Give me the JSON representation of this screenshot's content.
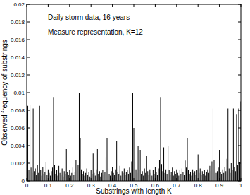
{
  "chart_data": {
    "type": "bar",
    "annotations": [
      "Daily storm data, 16 years",
      "Measure representation, K=12"
    ],
    "x_label": "Substrings with length K",
    "y_label": "Observed frequency of substrings",
    "color": "#000000",
    "xlim": [
      0,
      1
    ],
    "ylim": [
      0,
      0.02
    ],
    "xticks": [
      0,
      0.1,
      0.2,
      0.3,
      0.4,
      0.5,
      0.6,
      0.7,
      0.8,
      0.9,
      1
    ],
    "yticks": [
      0,
      0.002,
      0.004,
      0.006,
      0.008,
      0.01,
      0.012,
      0.014,
      0.016,
      0.018,
      0.02
    ],
    "x": [
      0,
      0.005,
      0.01,
      0.015,
      0.02,
      0.025,
      0.03,
      0.035,
      0.04,
      0.045,
      0.05,
      0.055,
      0.06,
      0.065,
      0.07,
      0.075,
      0.08,
      0.085,
      0.09,
      0.095,
      0.1,
      0.105,
      0.11,
      0.115,
      0.12,
      0.125,
      0.13,
      0.135,
      0.14,
      0.145,
      0.15,
      0.155,
      0.16,
      0.165,
      0.17,
      0.175,
      0.18,
      0.185,
      0.19,
      0.195,
      0.2,
      0.205,
      0.21,
      0.215,
      0.22,
      0.225,
      0.23,
      0.235,
      0.24,
      0.245,
      0.25,
      0.255,
      0.26,
      0.265,
      0.27,
      0.275,
      0.28,
      0.285,
      0.29,
      0.295,
      0.3,
      0.305,
      0.31,
      0.315,
      0.32,
      0.325,
      0.33,
      0.335,
      0.34,
      0.345,
      0.35,
      0.355,
      0.36,
      0.365,
      0.37,
      0.375,
      0.38,
      0.385,
      0.39,
      0.395,
      0.4,
      0.405,
      0.41,
      0.415,
      0.42,
      0.425,
      0.43,
      0.435,
      0.44,
      0.445,
      0.45,
      0.455,
      0.46,
      0.465,
      0.47,
      0.475,
      0.48,
      0.485,
      0.49,
      0.495,
      0.5,
      0.505,
      0.51,
      0.515,
      0.52,
      0.525,
      0.53,
      0.535,
      0.54,
      0.545,
      0.55,
      0.555,
      0.56,
      0.565,
      0.57,
      0.575,
      0.58,
      0.585,
      0.59,
      0.595,
      0.6,
      0.605,
      0.61,
      0.615,
      0.62,
      0.625,
      0.63,
      0.635,
      0.64,
      0.645,
      0.65,
      0.655,
      0.66,
      0.665,
      0.67,
      0.675,
      0.68,
      0.685,
      0.69,
      0.695,
      0.7,
      0.705,
      0.71,
      0.715,
      0.72,
      0.725,
      0.73,
      0.735,
      0.74,
      0.745,
      0.75,
      0.755,
      0.76,
      0.765,
      0.77,
      0.775,
      0.78,
      0.785,
      0.79,
      0.795,
      0.8,
      0.805,
      0.81,
      0.815,
      0.82,
      0.825,
      0.83,
      0.835,
      0.84,
      0.845,
      0.85,
      0.855,
      0.86,
      0.865,
      0.87,
      0.875,
      0.88,
      0.885,
      0.89,
      0.895,
      0.9,
      0.905,
      0.91,
      0.915,
      0.92,
      0.925,
      0.93,
      0.935,
      0.94,
      0.945,
      0.95,
      0.955,
      0.96,
      0.965,
      0.97,
      0.975,
      0.98,
      0.985,
      0.99,
      0.995,
      1
    ],
    "values": [
      0.0088,
      0.0085,
      0.0012,
      0.0086,
      0.0015,
      0.0009,
      0.0082,
      0.0011,
      0.0014,
      0.0007,
      0.0018,
      0.0009,
      0.0085,
      0.0012,
      0.0006,
      0.0016,
      0.0008,
      0.001,
      0.0021,
      0.0007,
      0.0013,
      0.0009,
      0.0006,
      0.0011,
      0.0015,
      0.0095,
      0.0018,
      0.0008,
      0.0012,
      0.0006,
      0.0017,
      0.0009,
      0.0007,
      0.0014,
      0.0005,
      0.0011,
      0.0008,
      0.0036,
      0.001,
      0.0007,
      0.0012,
      0.0006,
      0.0009,
      0.0015,
      0.0007,
      0.001,
      0.0024,
      0.0012,
      0.0018,
      0.01,
      0.0048,
      0.0013,
      0.0008,
      0.0011,
      0.0006,
      0.0009,
      0.0014,
      0.0007,
      0.001,
      0.0005,
      0.0012,
      0.0008,
      0.0031,
      0.0009,
      0.0006,
      0.0013,
      0.0036,
      0.0008,
      0.0011,
      0.0005,
      0.0009,
      0.0012,
      0.0007,
      0.001,
      0.0027,
      0.0048,
      0.0014,
      0.0008,
      0.0006,
      0.0011,
      0.0016,
      0.0009,
      0.0007,
      0.0013,
      0.0045,
      0.001,
      0.0008,
      0.0017,
      0.0006,
      0.0011,
      0.0009,
      0.0014,
      0.0007,
      0.001,
      0.0012,
      0.0008,
      0.0015,
      0.0009,
      0.0022,
      0.01,
      0.006,
      0.0021,
      0.0013,
      0.0009,
      0.004,
      0.0012,
      0.0035,
      0.0008,
      0.0011,
      0.0006,
      0.0014,
      0.0009,
      0.0028,
      0.0011,
      0.0007,
      0.0013,
      0.0009,
      0.0006,
      0.0012,
      0.0008,
      0.0016,
      0.001,
      0.0007,
      0.0014,
      0.0024,
      0.0095,
      0.0019,
      0.0011,
      0.0038,
      0.0009,
      0.0013,
      0.0008,
      0.004,
      0.0012,
      0.0007,
      0.001,
      0.0015,
      0.0006,
      0.0011,
      0.0008,
      0.0013,
      0.0009,
      0.0006,
      0.0012,
      0.0008,
      0.0014,
      0.001,
      0.0007,
      0.0023,
      0.0015,
      0.0048,
      0.0012,
      0.0008,
      0.001,
      0.0006,
      0.0013,
      0.0009,
      0.0011,
      0.0007,
      0.0012,
      0.003,
      0.0009,
      0.0014,
      0.0007,
      0.0011,
      0.0008,
      0.0012,
      0.0006,
      0.001,
      0.0013,
      0.0009,
      0.0017,
      0.0011,
      0.0022,
      0.0082,
      0.0024,
      0.0013,
      0.0009,
      0.0011,
      0.0015,
      0.0035,
      0.001,
      0.0008,
      0.0013,
      0.0009,
      0.0016,
      0.0011,
      0.0025,
      0.0082,
      0.0014,
      0.0009,
      0.002,
      0.0012,
      0.0082,
      0.0016,
      0.0011,
      0.0075,
      0.0018,
      0.0082,
      0.0021,
      0.009
    ]
  }
}
